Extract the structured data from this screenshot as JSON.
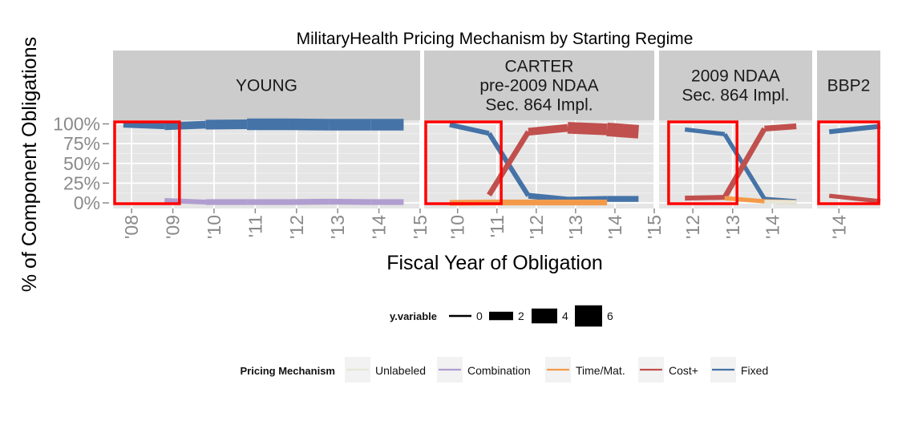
{
  "chart_data": {
    "type": "line",
    "title": "MilitaryHealth Pricing Mechanism by Starting Regime",
    "xlabel": "Fiscal Year of Obligation",
    "ylabel": "% of Component Obligations",
    "y_ticks": [
      "0%",
      "25%",
      "50%",
      "75%",
      "100%"
    ],
    "ylim": [
      0,
      1
    ],
    "colors": {
      "Unlabeled": "#e6e6d8",
      "Combination": "#b09ed0",
      "Time/Mat.": "#f39a4a",
      "Cost+": "#c0504d",
      "Fixed": "#4573a7",
      "highlight": "#ff0000"
    },
    "panels": [
      {
        "name": "YOUNG",
        "label_lines": [
          "YOUNG"
        ],
        "xlim": [
          2007.55,
          2015
        ],
        "x_ticks": [
          {
            "v": 2008,
            "label": "'08"
          },
          {
            "v": 2009,
            "label": "'09"
          },
          {
            "v": 2010,
            "label": "'10"
          },
          {
            "v": 2011,
            "label": "'11"
          },
          {
            "v": 2012,
            "label": "'12"
          },
          {
            "v": 2013,
            "label": "'13"
          },
          {
            "v": 2014,
            "label": "'14"
          },
          {
            "v": 2015,
            "label": "'15"
          }
        ],
        "highlight": [
          2007.55,
          2009.2
        ],
        "series": [
          {
            "name": "Fixed",
            "x": [
              2007.8,
              2008.8,
              2009.8,
              2010.8,
              2011.8,
              2012.8,
              2013.8,
              2014.6
            ],
            "y": [
              0.99,
              0.97,
              0.99,
              0.995,
              0.995,
              0.99,
              0.99,
              0.99
            ],
            "size": [
              1,
              2,
              3,
              4,
              5,
              5,
              5,
              5
            ]
          },
          {
            "name": "Combination",
            "x": [
              2008.8,
              2009.8,
              2010.8,
              2011.8,
              2012.8,
              2013.8,
              2014.6
            ],
            "y": [
              0.03,
              0.01,
              0.01,
              0.01,
              0.015,
              0.01,
              0.01
            ],
            "size": [
              1,
              1.5,
              2,
              2,
              2,
              2,
              2
            ]
          }
        ]
      },
      {
        "name": "CARTER pre-2009 NDAA Sec. 864 Impl.",
        "label_lines": [
          "CARTER",
          "pre-2009 NDAA",
          "Sec. 864 Impl."
        ],
        "xlim": [
          2009.15,
          2015
        ],
        "x_ticks": [
          {
            "v": 2010,
            "label": "'10"
          },
          {
            "v": 2011,
            "label": "'11"
          },
          {
            "v": 2012,
            "label": "'12"
          },
          {
            "v": 2013,
            "label": "'13"
          },
          {
            "v": 2014,
            "label": "'14"
          },
          {
            "v": 2015,
            "label": "'15"
          }
        ],
        "highlight": [
          2009.15,
          2011.15
        ],
        "series": [
          {
            "name": "Fixed",
            "x": [
              2009.8,
              2010.8,
              2011.8,
              2012.8,
              2013.8,
              2014.6
            ],
            "y": [
              0.99,
              0.88,
              0.09,
              0.04,
              0.05,
              0.05
            ],
            "size": [
              1.2,
              1.5,
              1.5,
              2,
              2,
              2
            ]
          },
          {
            "name": "Cost+",
            "x": [
              2010.8,
              2011.8,
              2012.8,
              2013.8,
              2014.6
            ],
            "y": [
              0.1,
              0.9,
              0.95,
              0.93,
              0.9
            ],
            "size": [
              1.5,
              1.8,
              3,
              5,
              6
            ]
          },
          {
            "name": "Time/Mat.",
            "x": [
              2009.8,
              2010.8,
              2011.8,
              2012.8,
              2013.8
            ],
            "y": [
              0.0,
              0.005,
              0.005,
              0.005,
              0.005
            ],
            "size": [
              2,
              2,
              2,
              2,
              2
            ]
          }
        ]
      },
      {
        "name": "2009 NDAA Sec. 864 Impl.",
        "label_lines": [
          "2009 NDAA",
          "Sec. 864 Impl."
        ],
        "xlim": [
          2011.15,
          2015
        ],
        "x_ticks": [
          {
            "v": 2012,
            "label": "'12"
          },
          {
            "v": 2013,
            "label": "'13"
          },
          {
            "v": 2014,
            "label": "'14"
          }
        ],
        "highlight": [
          2011.35,
          2013.15
        ],
        "series": [
          {
            "name": "Fixed",
            "x": [
              2011.8,
              2012.8,
              2013.8,
              2014.6
            ],
            "y": [
              0.93,
              0.87,
              0.05,
              0.02
            ],
            "size": [
              1.2,
              1.2,
              1.2,
              1.2
            ]
          },
          {
            "name": "Cost+",
            "x": [
              2011.8,
              2012.8,
              2013.8,
              2014.6
            ],
            "y": [
              0.06,
              0.07,
              0.94,
              0.97
            ],
            "size": [
              1.2,
              1.5,
              1.8,
              2
            ]
          },
          {
            "name": "Time/Mat.",
            "x": [
              2012.8,
              2013.8,
              2014.6
            ],
            "y": [
              0.06,
              0.02,
              0.01
            ],
            "size": [
              1.2,
              1.2,
              1.2
            ]
          },
          {
            "name": "Unlabeled",
            "x": [
              2013.8,
              2014.6
            ],
            "y": [
              0.015,
              0.01
            ],
            "size": [
              1,
              1
            ]
          }
        ]
      },
      {
        "name": "BBP2",
        "label_lines": [
          "BBP2"
        ],
        "xlim": [
          2013.55,
          2014.85
        ],
        "x_ticks": [
          {
            "v": 2014,
            "label": "'14"
          }
        ],
        "highlight": [
          2013.55,
          2014.85
        ],
        "series": [
          {
            "name": "Fixed",
            "x": [
              2013.8,
              2014.85
            ],
            "y": [
              0.9,
              0.97
            ],
            "size": [
              1.2,
              1.5
            ]
          },
          {
            "name": "Cost+",
            "x": [
              2013.8,
              2014.85
            ],
            "y": [
              0.09,
              0.02
            ],
            "size": [
              1.2,
              1.2
            ]
          }
        ]
      }
    ],
    "legends": [
      {
        "title": "y.variable",
        "type": "size",
        "items": [
          {
            "label": "0",
            "size": 0
          },
          {
            "label": "2",
            "size": 2
          },
          {
            "label": "4",
            "size": 4
          },
          {
            "label": "6",
            "size": 6
          }
        ]
      },
      {
        "title": "Pricing Mechanism",
        "type": "color",
        "items": [
          {
            "label": "Unlabeled",
            "color": "#e6e6d8"
          },
          {
            "label": "Combination",
            "color": "#b09ed0"
          },
          {
            "label": "Time/Mat.",
            "color": "#f39a4a"
          },
          {
            "label": "Cost+",
            "color": "#c0504d"
          },
          {
            "label": "Fixed",
            "color": "#4573a7"
          }
        ]
      }
    ]
  }
}
